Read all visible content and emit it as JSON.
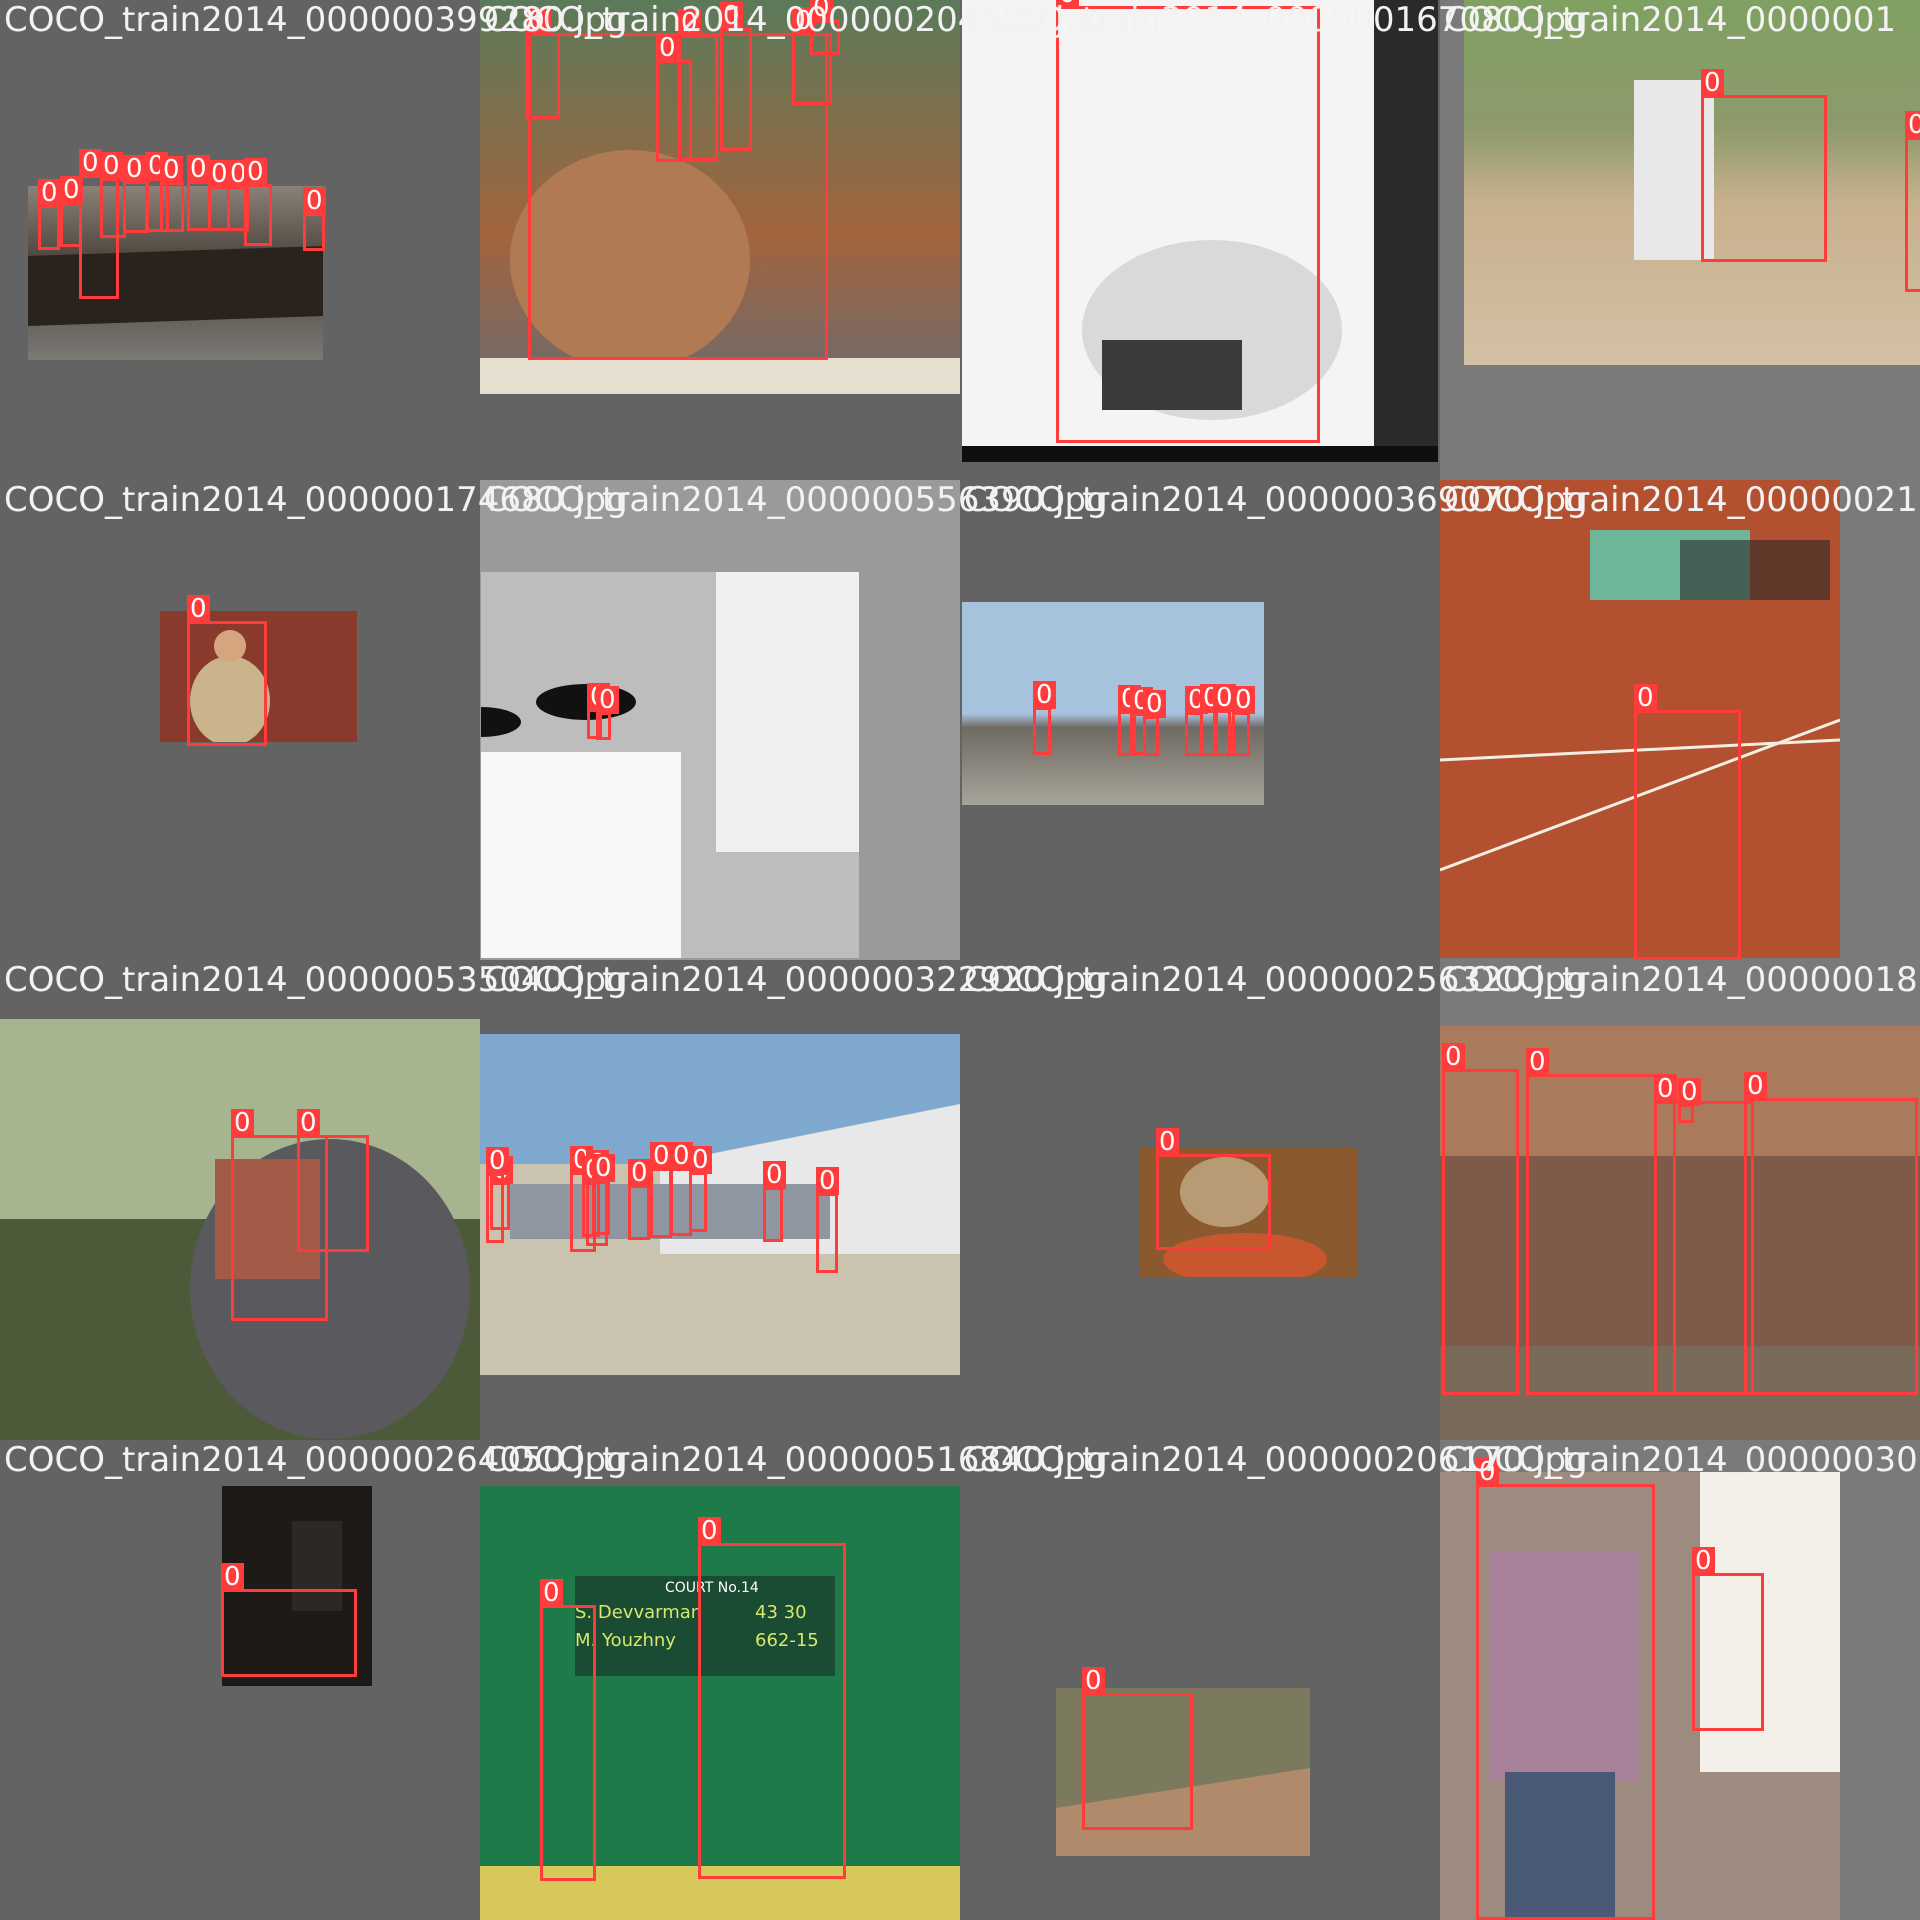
{
  "colors": {
    "box": "#ff3b3b",
    "label_text": "#ffffff",
    "filename_text": "#f2f2f2",
    "pad_dark": "#636363",
    "pad_light": "#9a9a9a",
    "pad_mid": "#7a7a7a"
  },
  "mosaic": {
    "tiles": [
      {
        "filename": "COCO_train2014_000000399280.jpg",
        "pad": "#636363",
        "scene": "mounted police parade",
        "photo_color": "#5e5a52",
        "box_label": "0"
      },
      {
        "filename": "COCO_train2014_000000204500.jpg",
        "pad": "#636363",
        "scene": "man riding scooter",
        "photo_color": "#8b6a4d",
        "box_label": "0"
      },
      {
        "filename": "COCO_train2014_000000167080.jpg",
        "pad": "#636363",
        "scene": "child on toilet, black and white",
        "photo_color": "#ededed",
        "box_label": "0"
      },
      {
        "filename": "COCO_train2014_0000001",
        "pad": "#7a7a7a",
        "scene": "baseball batter",
        "photo_color": "#8e9a6c",
        "box_label": "0"
      },
      {
        "filename": "COCO_train2014_000000174680.jpg",
        "pad": "#636363",
        "scene": "man with game controller",
        "photo_color": "#8a3a2c",
        "box_label": "0"
      },
      {
        "filename": "COCO_train2014_000000556390.jpg",
        "pad": "#9a9a9a",
        "scene": "apartment building with umbrellas",
        "photo_color": "#d0d0d0",
        "box_label": "0"
      },
      {
        "filename": "COCO_train2014_000000369070.jpg",
        "pad": "#636363",
        "scene": "air show crowd",
        "photo_color": "#a7c2dd",
        "box_label": "0"
      },
      {
        "filename": "COCO_train2014_00000021",
        "pad": "#7a7a7a",
        "scene": "tennis serve on clay court",
        "photo_color": "#b3502f",
        "box_label": "0"
      },
      {
        "filename": "COCO_train2014_000000535040.jpg",
        "pad": "#636363",
        "scene": "people riding elephant",
        "photo_color": "#4d5a3a",
        "box_label": "0"
      },
      {
        "filename": "COCO_train2014_000000322920.jpg",
        "pad": "#636363",
        "scene": "vintage bomber plane display",
        "photo_color": "#c9c3b0",
        "box_label": "0"
      },
      {
        "filename": "COCO_train2014_000000256320.jpg",
        "pad": "#636363",
        "scene": "person with pizza",
        "photo_color": "#8a5a2e",
        "box_label": "0"
      },
      {
        "filename": "COCO_train2014_00000018",
        "pad": "#7a7a7a",
        "scene": "people sitting on bench",
        "photo_color": "#7d5a4a",
        "box_label": "0"
      },
      {
        "filename": "COCO_train2014_000000264050.jpg",
        "pad": "#636363",
        "scene": "dark room by window",
        "photo_color": "#1e1a17",
        "box_label": "0"
      },
      {
        "filename": "COCO_train2014_000000516840.jpg",
        "pad": "#636363",
        "scene": "tennis serve at court 14",
        "photo_color": "#1f7a4a",
        "box_label": "0",
        "scoreboard": {
          "court": "COURT No.14",
          "row1_name": "S. Devvarman",
          "row1_score": "43 30",
          "row2_name": "M. Youzhny",
          "row2_score": "662-15"
        }
      },
      {
        "filename": "COCO_train2014_000000206170.jpg",
        "pad": "#636363",
        "scene": "skateboarder",
        "photo_color": "#7c7a5e",
        "box_label": "0"
      },
      {
        "filename": "COCO_train2014_00000030",
        "pad": "#7a7a7a",
        "scene": "girl playing video game",
        "photo_color": "#9d8b80",
        "box_label": "0"
      }
    ]
  }
}
